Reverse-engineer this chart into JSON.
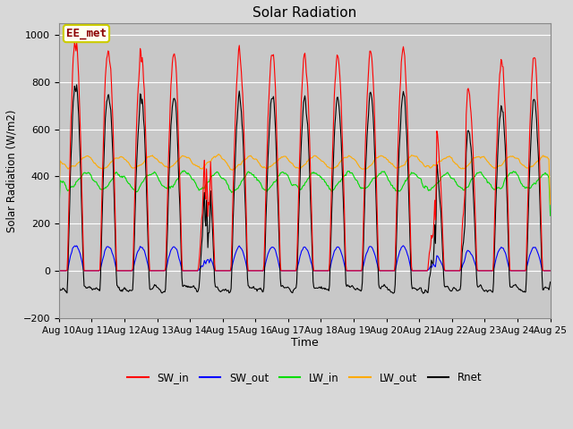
{
  "title": "Solar Radiation",
  "ylabel": "Solar Radiation (W/m2)",
  "xlabel": "Time",
  "ylim": [
    -200,
    1050
  ],
  "yticks": [
    -200,
    0,
    200,
    400,
    600,
    800,
    1000
  ],
  "xtick_labels": [
    "Aug 10",
    "Aug 11",
    "Aug 12",
    "Aug 13",
    "Aug 14",
    "Aug 15",
    "Aug 16",
    "Aug 17",
    "Aug 18",
    "Aug 19",
    "Aug 20",
    "Aug 21",
    "Aug 22",
    "Aug 23",
    "Aug 24",
    "Aug 25"
  ],
  "figure_bg": "#d8d8d8",
  "plot_bg": "#c8c8c8",
  "colors": {
    "SW_in": "#ff0000",
    "SW_out": "#0000ff",
    "LW_in": "#00dd00",
    "LW_out": "#ffaa00",
    "Rnet": "#000000"
  },
  "legend_label": "EE_met",
  "n_days": 15,
  "dt_hours": 0.5
}
